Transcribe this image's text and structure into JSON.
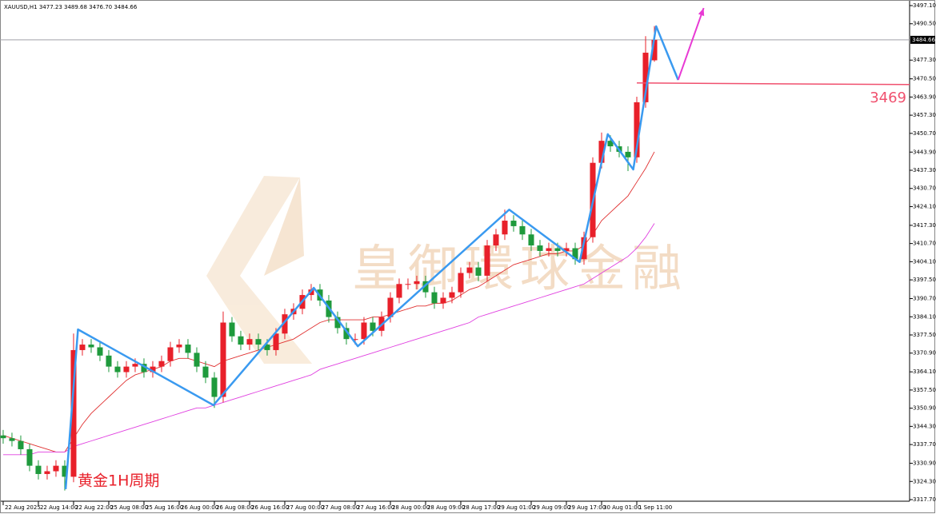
{
  "chart_data": {
    "type": "candlestick",
    "title": "XAUUSD,H1  3477.23 3489.68 3476.70 3484.66",
    "watermark": "皇御環球金融",
    "annotation": "黄金1H周期",
    "open": [
      3341,
      3340,
      3339,
      3336,
      3330,
      3327,
      3328,
      3330,
      3326,
      3372,
      3374,
      3373,
      3370,
      3366,
      3364,
      3366,
      3367,
      3364,
      3366,
      3368,
      3373,
      3374,
      3371,
      3366,
      3362,
      3355,
      3382,
      3377,
      3374,
      3376,
      3374,
      3372,
      3378,
      3385,
      3387,
      3392,
      3394,
      3390,
      3384,
      3380,
      3376,
      3376,
      3382,
      3379,
      3384,
      3391,
      3396,
      3396,
      3397,
      3393,
      3389,
      3391,
      3393,
      3400,
      3402,
      3399,
      3410,
      3414,
      3419,
      3417,
      3414,
      3410,
      3408,
      3409,
      3408,
      3409,
      3405,
      3413,
      3440,
      3448,
      3446,
      3444,
      3442,
      3462,
      3477.23
    ],
    "high": [
      3343,
      3342,
      3341,
      3338,
      3332,
      3330,
      3332,
      3332,
      3378,
      3376,
      3376,
      3375,
      3372,
      3368,
      3368,
      3369,
      3369,
      3368,
      3370,
      3375,
      3376,
      3376,
      3373,
      3368,
      3364,
      3386,
      3384,
      3379,
      3378,
      3378,
      3376,
      3380,
      3387,
      3389,
      3394,
      3396,
      3396,
      3392,
      3386,
      3382,
      3378,
      3384,
      3384,
      3386,
      3393,
      3398,
      3398,
      3399,
      3399,
      3395,
      3393,
      3395,
      3402,
      3404,
      3404,
      3412,
      3416,
      3423,
      3421,
      3419,
      3416,
      3412,
      3411,
      3411,
      3411,
      3411,
      3415,
      3442,
      3451,
      3450,
      3448,
      3446,
      3464,
      3486,
      3489.68
    ],
    "low": [
      3338,
      3337,
      3334,
      3328,
      3325,
      3325,
      3326,
      3321,
      3324,
      3370,
      3371,
      3368,
      3364,
      3362,
      3362,
      3364,
      3362,
      3362,
      3364,
      3366,
      3371,
      3369,
      3364,
      3360,
      3351,
      3353,
      3375,
      3372,
      3372,
      3372,
      3370,
      3370,
      3376,
      3383,
      3385,
      3390,
      3388,
      3382,
      3378,
      3374,
      3374,
      3374,
      3377,
      3377,
      3382,
      3389,
      3394,
      3394,
      3391,
      3387,
      3387,
      3389,
      3391,
      3398,
      3397,
      3397,
      3408,
      3412,
      3415,
      3412,
      3408,
      3406,
      3406,
      3406,
      3406,
      3403,
      3403,
      3411,
      3438,
      3444,
      3442,
      3437,
      3440,
      3460,
      3476.7
    ],
    "close": [
      3340,
      3339,
      3336,
      3330,
      3327,
      3328,
      3330,
      3326,
      3372,
      3374,
      3373,
      3370,
      3366,
      3364,
      3366,
      3367,
      3364,
      3366,
      3368,
      3373,
      3374,
      3371,
      3366,
      3362,
      3355,
      3382,
      3377,
      3374,
      3376,
      3374,
      3372,
      3378,
      3385,
      3387,
      3392,
      3394,
      3390,
      3384,
      3380,
      3376,
      3376,
      3382,
      3379,
      3384,
      3391,
      3396,
      3396,
      3397,
      3393,
      3389,
      3391,
      3393,
      3400,
      3402,
      3399,
      3410,
      3414,
      3419,
      3417,
      3414,
      3410,
      3408,
      3409,
      3408,
      3409,
      3405,
      3413,
      3440,
      3448,
      3446,
      3444,
      3442,
      3462,
      3480,
      3484.66
    ],
    "up_color": "#e8202a",
    "down_color": "#1e9a3c",
    "series": [
      {
        "color": "#e03030",
        "values": [
          3341,
          3340,
          3339,
          3338,
          3337,
          3336,
          3335,
          3335,
          3340,
          3345,
          3349,
          3352,
          3355,
          3358,
          3361,
          3363,
          3364,
          3365,
          3366,
          3368,
          3369,
          3369,
          3368,
          3367,
          3366,
          3368,
          3369,
          3370,
          3371,
          3372,
          3373,
          3374,
          3375,
          3376,
          3378,
          3380,
          3382,
          3383,
          3383,
          3383,
          3383,
          3383,
          3384,
          3384,
          3385,
          3386,
          3387,
          3388,
          3388,
          3389,
          3389,
          3390,
          3392,
          3394,
          3395,
          3397,
          3399,
          3401,
          3403,
          3404,
          3405,
          3406,
          3407,
          3407,
          3408,
          3408,
          3410,
          3414,
          3419,
          3422,
          3425,
          3428,
          3433,
          3438,
          3444
        ]
      },
      {
        "color": "#e040e0",
        "values": [
          3334,
          3334,
          3334,
          3334,
          3335,
          3335,
          3335,
          3335,
          3337,
          3338,
          3339,
          3340,
          3341,
          3342,
          3343,
          3344,
          3345,
          3346,
          3347,
          3348,
          3349,
          3350,
          3351,
          3351,
          3352,
          3353,
          3354,
          3355,
          3356,
          3357,
          3358,
          3359,
          3360,
          3361,
          3362,
          3363,
          3365,
          3366,
          3367,
          3368,
          3369,
          3370,
          3371,
          3372,
          3373,
          3374,
          3375,
          3376,
          3377,
          3378,
          3379,
          3380,
          3381,
          3382,
          3384,
          3385,
          3386,
          3387,
          3388,
          3389,
          3390,
          3391,
          3392,
          3393,
          3394,
          3395,
          3396,
          3398,
          3400,
          3402,
          3404,
          3406,
          3409,
          3413,
          3418
        ]
      }
    ],
    "zigzag": {
      "color": "#3a9af0",
      "x": [
        7.1,
        8.5,
        23.9,
        35.3,
        40.3,
        57.5,
        65.5,
        68.7,
        71.6,
        74.2,
        76.7
      ],
      "values": [
        3321.5,
        3379.5,
        3352,
        3394.6,
        3373.4,
        3423,
        3404,
        3450.4,
        3437.6,
        3489.6,
        3470.1
      ]
    },
    "arrow": {
      "color": "#e83ad4",
      "x": [
        76.7,
        79.6
      ],
      "values": [
        3470.1,
        3496.2
      ]
    },
    "level": {
      "value": 3469,
      "label": "3469",
      "color": "#f0506e",
      "from": 72
    },
    "current_price": {
      "value": 3484.66,
      "label": "3484.66"
    },
    "xlim": [
      -0.36,
      103
    ],
    "ylim": [
      3317.12,
      3498.55
    ],
    "xticks": [
      {
        "value": 0,
        "label": "22 Aug 2025"
      },
      {
        "value": 4,
        "label": "22 Aug 14:00"
      },
      {
        "value": 8,
        "label": "22 Aug 22:00"
      },
      {
        "value": 12,
        "label": "25 Aug 08:00"
      },
      {
        "value": 16,
        "label": "25 Aug 16:00"
      },
      {
        "value": 20,
        "label": "26 Aug 00:00"
      },
      {
        "value": 24,
        "label": "26 Aug 08:00"
      },
      {
        "value": 28,
        "label": "26 Aug 16:00"
      },
      {
        "value": 32,
        "label": "27 Aug 00:00"
      },
      {
        "value": 36,
        "label": "27 Aug 08:00"
      },
      {
        "value": 40,
        "label": "27 Aug 16:00"
      },
      {
        "value": 44,
        "label": "28 Aug 00:00"
      },
      {
        "value": 48,
        "label": "28 Aug 09:00"
      },
      {
        "value": 52,
        "label": "28 Aug 17:00"
      },
      {
        "value": 56,
        "label": "29 Aug 01:00"
      },
      {
        "value": 60,
        "label": "29 Aug 09:00"
      },
      {
        "value": 64,
        "label": "29 Aug 17:00"
      },
      {
        "value": 68,
        "label": "30 Aug 01:00"
      },
      {
        "value": 72,
        "label": "1 Sep 11:00"
      }
    ],
    "yticks": [
      {
        "value": 3497.1,
        "label": "3497.10"
      },
      {
        "value": 3490.5,
        "label": "3490.50"
      },
      {
        "value": 3477.3,
        "label": "3477.30"
      },
      {
        "value": 3470.5,
        "label": "3470.50"
      },
      {
        "value": 3463.9,
        "label": "3463.90"
      },
      {
        "value": 3457.3,
        "label": "3457.30"
      },
      {
        "value": 3450.7,
        "label": "3450.70"
      },
      {
        "value": 3443.9,
        "label": "3443.90"
      },
      {
        "value": 3437.3,
        "label": "3437.30"
      },
      {
        "value": 3430.7,
        "label": "3430.70"
      },
      {
        "value": 3424.1,
        "label": "3424.10"
      },
      {
        "value": 3417.3,
        "label": "3417.30"
      },
      {
        "value": 3410.7,
        "label": "3410.70"
      },
      {
        "value": 3404.1,
        "label": "3404.10"
      },
      {
        "value": 3397.5,
        "label": "3397.50"
      },
      {
        "value": 3390.7,
        "label": "3390.70"
      },
      {
        "value": 3384.1,
        "label": "3384.10"
      },
      {
        "value": 3377.5,
        "label": "3377.50"
      },
      {
        "value": 3370.9,
        "label": "3370.90"
      },
      {
        "value": 3364.1,
        "label": "3364.10"
      },
      {
        "value": 3357.5,
        "label": "3357.50"
      },
      {
        "value": 3350.9,
        "label": "3350.90"
      },
      {
        "value": 3344.3,
        "label": "3344.30"
      },
      {
        "value": 3337.7,
        "label": "3337.70"
      },
      {
        "value": 3330.9,
        "label": "3330.90"
      },
      {
        "value": 3324.3,
        "label": "3324.30"
      },
      {
        "value": 3317.7,
        "label": "3317.70"
      }
    ]
  }
}
